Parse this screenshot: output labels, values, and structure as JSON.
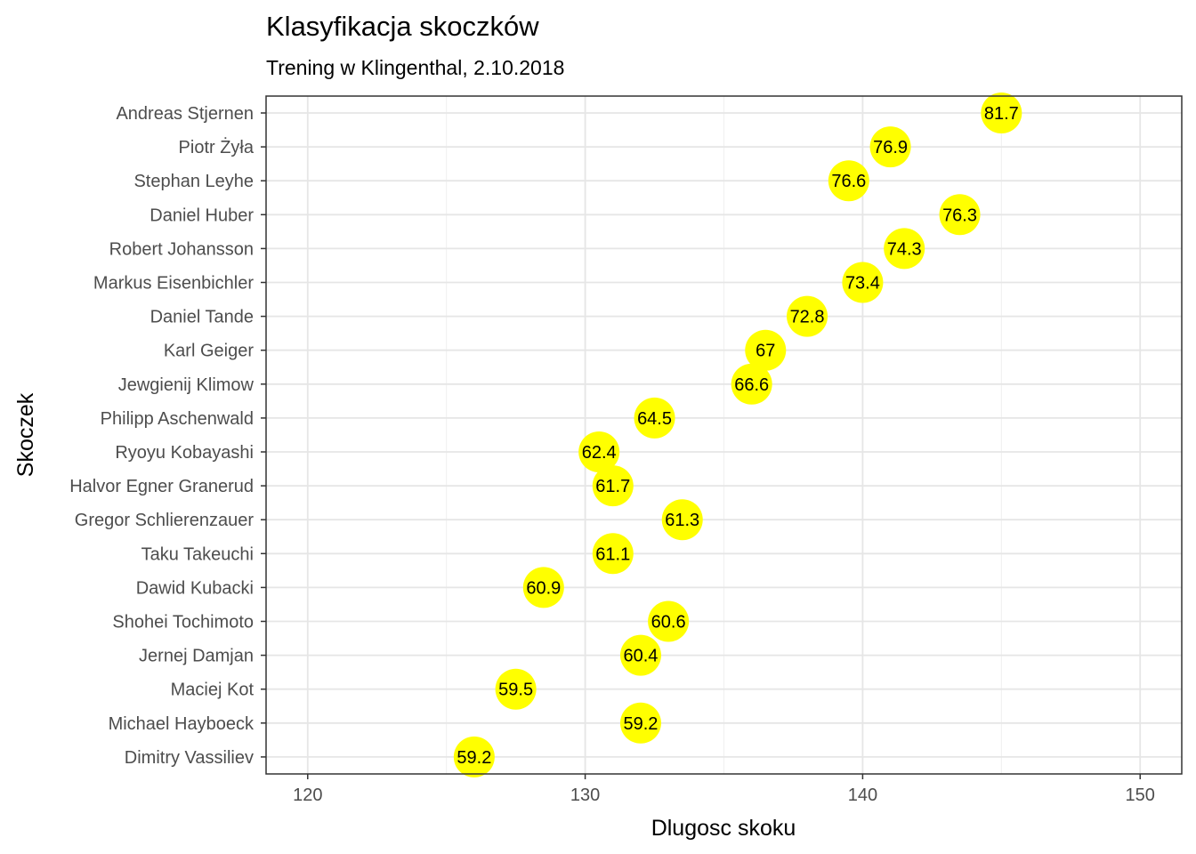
{
  "chart_data": {
    "type": "scatter",
    "title": "Klasyfikacja skoczków",
    "subtitle": "Trening w Klingenthal, 2.10.2018",
    "xlabel": "Dlugosc skoku",
    "ylabel": "Skoczek",
    "xlim": [
      118.5,
      151.5
    ],
    "xticks": [
      120,
      130,
      140,
      150
    ],
    "xtick_labels": [
      "120",
      "130",
      "140",
      "150"
    ],
    "grid": true,
    "legend": "none",
    "point_color": "#ffff00",
    "points": [
      {
        "name": "Andreas Stjernen",
        "x": 145.0,
        "label": "81.7"
      },
      {
        "name": "Piotr Żyła",
        "x": 141.0,
        "label": "76.9"
      },
      {
        "name": "Stephan Leyhe",
        "x": 139.5,
        "label": "76.6"
      },
      {
        "name": "Daniel Huber",
        "x": 143.5,
        "label": "76.3"
      },
      {
        "name": "Robert Johansson",
        "x": 141.5,
        "label": "74.3"
      },
      {
        "name": "Markus Eisenbichler",
        "x": 140.0,
        "label": "73.4"
      },
      {
        "name": "Daniel Tande",
        "x": 138.0,
        "label": "72.8"
      },
      {
        "name": "Karl Geiger",
        "x": 136.5,
        "label": "67"
      },
      {
        "name": "Jewgienij Klimow",
        "x": 136.0,
        "label": "66.6"
      },
      {
        "name": "Philipp Aschenwald",
        "x": 132.5,
        "label": "64.5"
      },
      {
        "name": "Ryoyu Kobayashi",
        "x": 130.5,
        "label": "62.4"
      },
      {
        "name": "Halvor Egner Granerud",
        "x": 131.0,
        "label": "61.7"
      },
      {
        "name": "Gregor Schlierenzauer",
        "x": 133.5,
        "label": "61.3"
      },
      {
        "name": "Taku Takeuchi",
        "x": 131.0,
        "label": "61.1"
      },
      {
        "name": "Dawid Kubacki",
        "x": 128.5,
        "label": "60.9"
      },
      {
        "name": "Shohei Tochimoto",
        "x": 133.0,
        "label": "60.6"
      },
      {
        "name": "Jernej Damjan",
        "x": 132.0,
        "label": "60.4"
      },
      {
        "name": "Maciej Kot",
        "x": 127.5,
        "label": "59.5"
      },
      {
        "name": "Michael Hayboeck",
        "x": 132.0,
        "label": "59.2"
      },
      {
        "name": "Dimitry Vassiliev",
        "x": 126.0,
        "label": "59.2"
      }
    ]
  }
}
